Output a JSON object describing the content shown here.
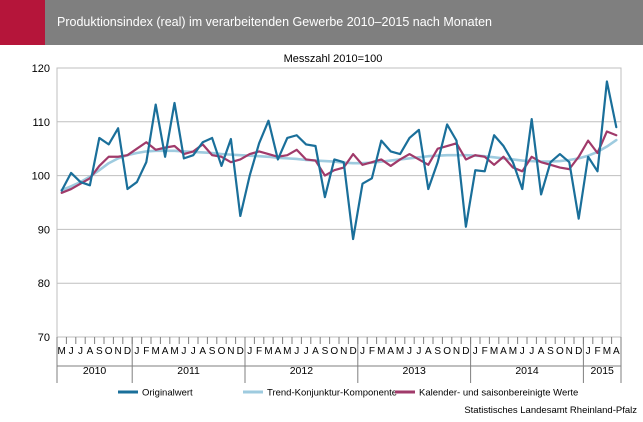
{
  "header": {
    "title": "Produktionsindex (real) im verarbeitenden Gewerbe 2010–2015 nach Monaten",
    "accent_color": "#b5153a",
    "bar_color": "#7f7f7f"
  },
  "chart_data": {
    "type": "line",
    "title": "",
    "subtitle": "Messzahl 2010=100",
    "xlabel": "",
    "ylabel": "",
    "ylim": [
      70,
      120
    ],
    "yticks": [
      70,
      80,
      90,
      100,
      110,
      120
    ],
    "grid": true,
    "legend_position": "bottom",
    "month_labels": [
      "M",
      "J",
      "J",
      "A",
      "S",
      "O",
      "N",
      "D",
      "J",
      "F",
      "M",
      "A",
      "M",
      "J",
      "J",
      "A",
      "S",
      "O",
      "N",
      "D",
      "J",
      "F",
      "M",
      "A",
      "M",
      "J",
      "J",
      "A",
      "S",
      "O",
      "N",
      "D",
      "J",
      "F",
      "M",
      "A",
      "M",
      "J",
      "J",
      "A",
      "S",
      "O",
      "N",
      "D",
      "J",
      "F",
      "M",
      "A",
      "M",
      "J",
      "J",
      "A",
      "S",
      "O",
      "N",
      "D",
      "J",
      "F",
      "M",
      "A"
    ],
    "years": [
      {
        "label": "2010",
        "months": 8
      },
      {
        "label": "2011",
        "months": 12
      },
      {
        "label": "2012",
        "months": 12
      },
      {
        "label": "2013",
        "months": 12
      },
      {
        "label": "2014",
        "months": 12
      },
      {
        "label": "2015",
        "months": 4
      }
    ],
    "series": [
      {
        "name": "Originalwert",
        "color": "#1a6f9a",
        "values": [
          97.2,
          100.5,
          98.8,
          98.2,
          107.0,
          105.8,
          108.8,
          97.5,
          98.8,
          102.5,
          113.2,
          103.5,
          113.5,
          103.2,
          103.8,
          106.2,
          107.0,
          101.8,
          106.8,
          92.5,
          100.0,
          106.0,
          110.2,
          103.0,
          107.0,
          107.5,
          105.8,
          105.5,
          96.0,
          103.0,
          102.5,
          88.2,
          98.5,
          99.5,
          106.5,
          104.5,
          104.0,
          107.0,
          108.5,
          97.5,
          102.5,
          109.5,
          106.5,
          90.5,
          101.0,
          100.8,
          107.5,
          105.5,
          102.5,
          97.5,
          110.5,
          96.5,
          102.5,
          104.0,
          102.5,
          92.0,
          103.5,
          100.8,
          117.5,
          109.0
        ]
      },
      {
        "name": "Trend-Konjunktur-Komponente",
        "color": "#9ecbdf",
        "values": [
          97.3,
          98.0,
          98.8,
          99.8,
          101.0,
          102.3,
          103.2,
          103.8,
          104.2,
          104.5,
          104.6,
          104.6,
          104.6,
          104.5,
          104.4,
          104.3,
          104.2,
          104.0,
          103.9,
          103.8,
          103.7,
          103.6,
          103.5,
          103.3,
          103.2,
          103.1,
          102.9,
          102.8,
          102.7,
          102.6,
          102.4,
          102.3,
          102.3,
          102.4,
          102.6,
          102.8,
          103.0,
          103.2,
          103.4,
          103.6,
          103.7,
          103.8,
          103.8,
          103.8,
          103.7,
          103.6,
          103.4,
          103.2,
          103.0,
          102.8,
          102.7,
          102.6,
          102.6,
          102.7,
          102.9,
          103.2,
          103.7,
          104.4,
          105.4,
          106.6
        ]
      },
      {
        "name": "Kalender- und saisonbereinigte Werte",
        "color": "#a03a6a",
        "values": [
          96.8,
          97.5,
          98.5,
          99.5,
          101.8,
          103.5,
          103.5,
          103.8,
          105.0,
          106.2,
          104.8,
          105.2,
          105.5,
          104.0,
          104.5,
          105.8,
          103.8,
          103.5,
          102.5,
          103.0,
          104.0,
          104.5,
          104.0,
          103.5,
          103.8,
          104.8,
          103.0,
          102.8,
          100.0,
          101.0,
          101.5,
          104.0,
          102.0,
          102.5,
          103.0,
          101.8,
          103.0,
          104.0,
          103.0,
          102.0,
          105.0,
          105.5,
          106.0,
          103.0,
          103.8,
          103.5,
          102.0,
          103.5,
          101.5,
          100.8,
          103.5,
          102.5,
          102.0,
          101.5,
          101.2,
          103.5,
          106.5,
          104.2,
          108.2,
          107.5
        ]
      }
    ]
  },
  "source": "Statistisches Landesamt Rheinland-Pfalz"
}
